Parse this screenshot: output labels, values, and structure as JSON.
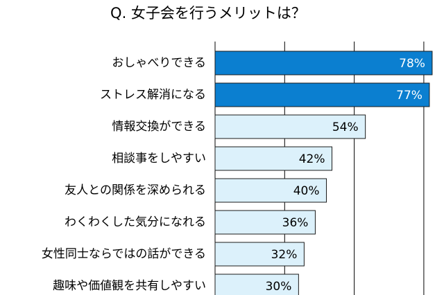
{
  "chart_data": {
    "type": "barh",
    "title": "Q. 女子会を行うメリットは？",
    "categories": [
      "おしゃべりできる",
      "ストレス解消になる",
      "情報交換ができる",
      "相談事をしやすい",
      "友人との関係を深められる",
      "わくわくした気分になれる",
      "女性同士ならではの話ができる",
      "趣味や価値観を共有しやすい"
    ],
    "values": [
      78,
      77,
      54,
      42,
      40,
      36,
      32,
      30
    ],
    "value_labels": [
      "78%",
      "77%",
      "54%",
      "42%",
      "40%",
      "36%",
      "32%",
      "30%"
    ],
    "colors": [
      "#0b7fd0",
      "#0b7fd0",
      "#dcf1fb",
      "#dcf1fb",
      "#dcf1fb",
      "#dcf1fb",
      "#dcf1fb",
      "#dcf1fb"
    ],
    "label_colors": [
      "#ffffff",
      "#ffffff",
      "#000000",
      "#000000",
      "#000000",
      "#000000",
      "#000000",
      "#000000"
    ],
    "xlim": [
      0,
      82
    ],
    "xticks": [
      0,
      25,
      50,
      75
    ],
    "grid": true
  }
}
